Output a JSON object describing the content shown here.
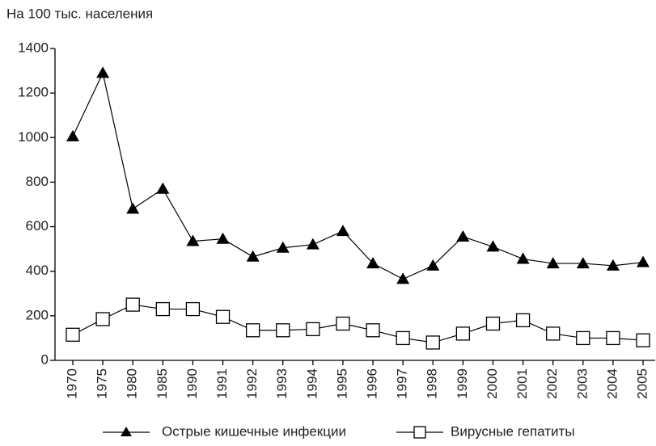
{
  "chart_data": {
    "type": "line",
    "ylabel": "На 100 тыс. населения",
    "categories": [
      "1970",
      "1975",
      "1980",
      "1985",
      "1990",
      "1991",
      "1992",
      "1993",
      "1994",
      "1995",
      "1996",
      "1997",
      "1998",
      "1999",
      "2000",
      "2001",
      "2002",
      "2003",
      "2004",
      "2005"
    ],
    "series": [
      {
        "name": "Острые кишечные инфекции",
        "color": "#000000",
        "marker": "triangle",
        "values": [
          1005,
          1290,
          680,
          770,
          535,
          545,
          465,
          505,
          520,
          580,
          435,
          365,
          425,
          555,
          510,
          455,
          435,
          435,
          425,
          440
        ]
      },
      {
        "name": "Вирусные гепатиты",
        "color": "#000000",
        "marker": "square",
        "values": [
          115,
          185,
          250,
          230,
          230,
          195,
          135,
          135,
          140,
          165,
          135,
          100,
          80,
          120,
          165,
          180,
          120,
          100,
          100,
          90
        ]
      }
    ],
    "ylim": [
      0,
      1400
    ],
    "yticks": [
      0,
      200,
      400,
      600,
      800,
      1000,
      1200,
      1400
    ],
    "grid": false
  }
}
